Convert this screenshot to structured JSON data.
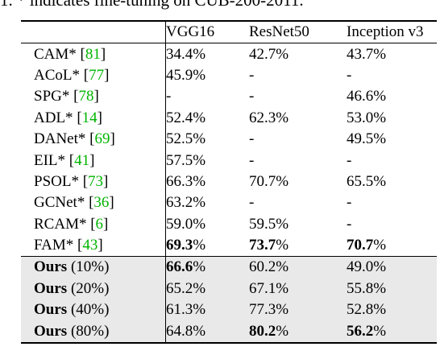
{
  "caption": "1. * indicates fine-tuning on CUB-200-2011.",
  "columns": [
    "VGG16",
    "ResNet50",
    "Inception v3"
  ],
  "rows": [
    {
      "method": "CAM*",
      "ref": "81",
      "vgg": "34.4%",
      "res": "42.7%",
      "inc": "43.7%"
    },
    {
      "method": "ACoL*",
      "ref": "77",
      "vgg": "45.9%",
      "res": "-",
      "inc": "-"
    },
    {
      "method": "SPG*",
      "ref": "78",
      "vgg": "-",
      "res": "-",
      "inc": "46.6%"
    },
    {
      "method": "ADL*",
      "ref": "14",
      "vgg": "52.4%",
      "res": "62.3%",
      "inc": "53.0%"
    },
    {
      "method": "DANet*",
      "ref": "69",
      "vgg": "52.5%",
      "res": "-",
      "inc": "49.5%"
    },
    {
      "method": "EIL*",
      "ref": "41",
      "vgg": "57.5%",
      "res": "-",
      "inc": "-"
    },
    {
      "method": "PSOL*",
      "ref": "73",
      "vgg": "66.3%",
      "res": "70.7%",
      "inc": "65.5%"
    },
    {
      "method": "GCNet*",
      "ref": "36",
      "vgg": "63.2%",
      "res": "-",
      "inc": "-"
    },
    {
      "method": "RCAM*",
      "ref": "6",
      "vgg": "59.0%",
      "res": "59.5%",
      "inc": "-"
    },
    {
      "method": "FAM*",
      "ref": "43",
      "vgg": "69.3",
      "res": "73.7",
      "inc": "70.7"
    }
  ],
  "ours_label": "Ours",
  "ours_rows": [
    {
      "setting": "(10%)",
      "vgg": "66.6",
      "res": "60.2%",
      "inc": "49.0%"
    },
    {
      "setting": "(20%)",
      "vgg": "65.2%",
      "res": "67.1%",
      "inc": "55.8%"
    },
    {
      "setting": "(40%)",
      "vgg": "61.3%",
      "res": "77.3%",
      "inc": "52.8%"
    },
    {
      "setting": "(80%)",
      "vgg": "64.8%",
      "res": "80.2",
      "inc": "56.2"
    }
  ],
  "pct": "%"
}
